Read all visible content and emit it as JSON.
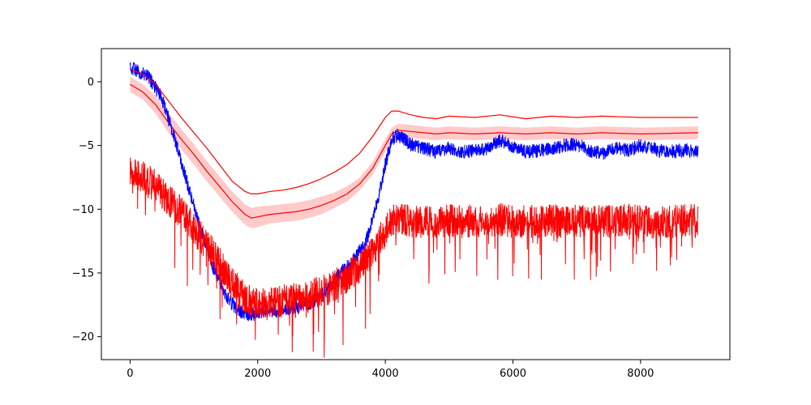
{
  "chart_data": {
    "type": "line",
    "title": "",
    "xlabel": "",
    "ylabel": "",
    "xlim": [
      -450,
      9400
    ],
    "ylim": [
      -21.8,
      2.6
    ],
    "grid": false,
    "legend": "none",
    "x_ticks": [
      {
        "value": 0,
        "label": "0"
      },
      {
        "value": 2000,
        "label": "2000"
      },
      {
        "value": 4000,
        "label": "4000"
      },
      {
        "value": 6000,
        "label": "6000"
      },
      {
        "value": 8000,
        "label": "8000"
      }
    ],
    "y_ticks": [
      {
        "value": 0,
        "label": "0"
      },
      {
        "value": -5,
        "label": "−5"
      },
      {
        "value": -10,
        "label": "−10"
      },
      {
        "value": -15,
        "label": "−15"
      },
      {
        "value": -20,
        "label": "−20"
      }
    ],
    "series": [
      {
        "key": "blue_noisy",
        "color": "#0000ff",
        "style": "noisy",
        "noise_amplitude": 0.55,
        "x": [
          0,
          300,
          500,
          700,
          900,
          1100,
          1300,
          1500,
          1700,
          1900,
          2100,
          2300,
          2500,
          2700,
          2900,
          3100,
          3300,
          3500,
          3700,
          3900,
          4000,
          4100,
          4200,
          4400,
          4600,
          4800,
          5000,
          5200,
          5400,
          5600,
          5800,
          6000,
          6200,
          6400,
          6600,
          6800,
          7000,
          7200,
          7400,
          7600,
          7800,
          8000,
          8200,
          8400,
          8600,
          8900
        ],
        "y": [
          1.2,
          0.3,
          -1.3,
          -4.5,
          -8.0,
          -11.5,
          -14.5,
          -16.8,
          -18.0,
          -18.3,
          -18.0,
          -18.0,
          -17.8,
          -17.6,
          -17.2,
          -16.3,
          -15.0,
          -14.0,
          -12.5,
          -9.0,
          -6.5,
          -4.5,
          -4.2,
          -4.9,
          -5.2,
          -5.5,
          -5.2,
          -5.5,
          -5.4,
          -5.3,
          -4.6,
          -5.1,
          -5.5,
          -5.4,
          -5.3,
          -5.0,
          -4.9,
          -5.4,
          -5.7,
          -5.2,
          -5.4,
          -5.0,
          -5.3,
          -5.5,
          -5.4,
          -5.4
        ]
      },
      {
        "key": "red_noisy",
        "color": "#ff0000",
        "style": "noisy_downspikes",
        "noise_amplitude": 1.3,
        "x": [
          0,
          200,
          400,
          600,
          800,
          1000,
          1200,
          1400,
          1600,
          1800,
          2000,
          2200,
          2400,
          2600,
          2800,
          3000,
          3200,
          3400,
          3600,
          3800,
          4000,
          4100,
          4200,
          4400,
          4600,
          4800,
          5000,
          5200,
          5400,
          5600,
          5800,
          6000,
          6200,
          6400,
          6600,
          6800,
          7000,
          7200,
          7400,
          7600,
          7800,
          8000,
          8200,
          8400,
          8600,
          8900
        ],
        "y": [
          -6.8,
          -7.5,
          -8.2,
          -9.2,
          -10.3,
          -11.5,
          -12.8,
          -14.2,
          -15.8,
          -17.0,
          -17.5,
          -17.4,
          -17.2,
          -17.0,
          -16.8,
          -16.5,
          -16.0,
          -15.3,
          -14.5,
          -13.3,
          -11.7,
          -10.8,
          -10.7,
          -11.0,
          -11.0,
          -11.0,
          -10.9,
          -11.0,
          -10.9,
          -11.0,
          -10.8,
          -11.0,
          -10.9,
          -11.0,
          -10.9,
          -11.0,
          -10.9,
          -11.0,
          -10.9,
          -11.0,
          -10.8,
          -11.0,
          -10.9,
          -11.0,
          -10.9,
          -10.9
        ]
      },
      {
        "key": "red_band_mean",
        "color": "#ff0000",
        "style": "line_with_band",
        "band_fill": "#ffb4b4",
        "band_halfwidth": [
          0.6,
          0.6,
          0.7,
          0.8,
          0.8,
          0.8,
          0.8,
          0.8,
          0.8,
          0.8,
          0.8,
          0.8,
          0.7,
          0.7,
          0.7,
          0.7,
          0.7,
          0.6,
          0.6,
          0.5,
          0.5,
          0.5,
          0.5,
          0.5,
          0.5,
          0.5,
          0.5,
          0.5,
          0.5,
          0.5,
          0.5,
          0.5,
          0.5,
          0.5,
          0.5,
          0.5
        ],
        "x": [
          0,
          200,
          400,
          600,
          800,
          1000,
          1200,
          1400,
          1600,
          1800,
          1900,
          2000,
          2200,
          2400,
          2600,
          2800,
          3000,
          3200,
          3400,
          3600,
          3800,
          4000,
          4100,
          4200,
          4400,
          4600,
          4800,
          5000,
          5400,
          5800,
          6200,
          6600,
          7000,
          7400,
          8000,
          8900
        ],
        "y": [
          -0.2,
          -0.8,
          -1.8,
          -3.2,
          -4.5,
          -5.7,
          -7.0,
          -8.2,
          -9.4,
          -10.4,
          -10.7,
          -10.6,
          -10.4,
          -10.3,
          -10.2,
          -10.0,
          -9.7,
          -9.3,
          -8.8,
          -8.0,
          -6.8,
          -5.0,
          -4.1,
          -3.8,
          -3.9,
          -4.0,
          -4.1,
          -4.0,
          -4.1,
          -4.0,
          -4.1,
          -4.0,
          -4.1,
          -4.0,
          -4.1,
          -4.0
        ]
      },
      {
        "key": "red_upper",
        "color": "#ff0000",
        "style": "line",
        "x": [
          0,
          200,
          400,
          600,
          800,
          1000,
          1200,
          1400,
          1600,
          1800,
          1900,
          2000,
          2200,
          2400,
          2600,
          2800,
          3000,
          3200,
          3400,
          3600,
          3800,
          4000,
          4100,
          4200,
          4400,
          4600,
          4800,
          5000,
          5400,
          5800,
          6200,
          6600,
          7000,
          7400,
          8000,
          8900
        ],
        "y": [
          1.0,
          0.6,
          -0.2,
          -1.5,
          -2.8,
          -4.0,
          -5.2,
          -6.5,
          -7.8,
          -8.6,
          -8.8,
          -8.8,
          -8.6,
          -8.5,
          -8.3,
          -8.0,
          -7.6,
          -7.1,
          -6.5,
          -5.6,
          -4.3,
          -2.8,
          -2.3,
          -2.3,
          -2.6,
          -2.8,
          -2.9,
          -2.7,
          -2.8,
          -2.6,
          -2.9,
          -2.7,
          -2.8,
          -2.7,
          -2.8,
          -2.8
        ]
      }
    ]
  }
}
